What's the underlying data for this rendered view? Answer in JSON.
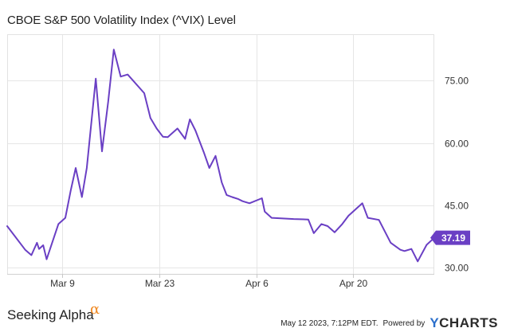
{
  "chart_data": {
    "type": "line",
    "title": "CBOE S&P 500 Volatility Index (^VIX) Level",
    "xlabel": "",
    "ylabel": "",
    "ylim": [
      28.5,
      86
    ],
    "y_ticks": [
      30.0,
      45.0,
      60.0,
      75.0
    ],
    "y_tick_labels": [
      "30.00",
      "45.00",
      "60.00",
      "75.00"
    ],
    "x_ticks": [
      {
        "label": "Mar 9",
        "day": 8
      },
      {
        "label": "Mar 23",
        "day": 22
      },
      {
        "label": "Apr 6",
        "day": 36
      },
      {
        "label": "Apr 20",
        "day": 50
      }
    ],
    "grid": true,
    "line_color": "#6a3fc4",
    "last_value_label": "37.19",
    "series": [
      {
        "name": "VIX",
        "x": [
          0,
          2.6,
          3.5,
          4.3,
          4.6,
          5.2,
          5.7,
          7.4,
          8.4,
          9.2,
          9.9,
          10.8,
          11.5,
          12.8,
          13.7,
          14.6,
          15.4,
          16.4,
          17.4,
          19.8,
          20.7,
          21.6,
          22.5,
          23.2,
          24.6,
          25.7,
          26.4,
          27.2,
          28.4,
          29.2,
          30.1,
          31.0,
          31.7,
          32.5,
          33.4,
          34.0,
          35.0,
          36.8,
          37.2,
          38.2,
          39.3,
          41.4,
          43.5,
          44.3,
          45.4,
          46.3,
          47.3,
          48.4,
          49.3,
          50.3,
          51.3,
          52.1,
          53.7,
          55.4,
          56.8,
          57.4,
          58.4,
          59.3,
          60.6,
          61.7
        ],
        "values": [
          40.0,
          34.3,
          33.0,
          36.0,
          34.5,
          35.4,
          32.0,
          40.5,
          42.0,
          48.7,
          54.0,
          47.0,
          54.0,
          75.5,
          58.0,
          70.0,
          82.5,
          76.0,
          76.5,
          72.0,
          66.0,
          63.5,
          61.5,
          61.4,
          63.5,
          61.0,
          65.7,
          63.0,
          57.8,
          54.0,
          56.9,
          50.5,
          47.5,
          47.0,
          46.5,
          46.0,
          45.5,
          46.7,
          43.5,
          42.0,
          41.9,
          41.7,
          41.6,
          38.3,
          40.5,
          40.0,
          38.5,
          40.5,
          42.5,
          44.0,
          45.5,
          42.0,
          41.5,
          36.0,
          34.3,
          34.0,
          34.5,
          31.5,
          35.5,
          37.19
        ]
      }
    ]
  },
  "footer": {
    "brand": "Seeking Alpha",
    "brand_mark": "α",
    "timestamp": "May 12 2023, 7:12PM EDT.",
    "powered_by": "Powered by",
    "ycharts_y": "Y",
    "ycharts_rest": "CHARTS"
  }
}
